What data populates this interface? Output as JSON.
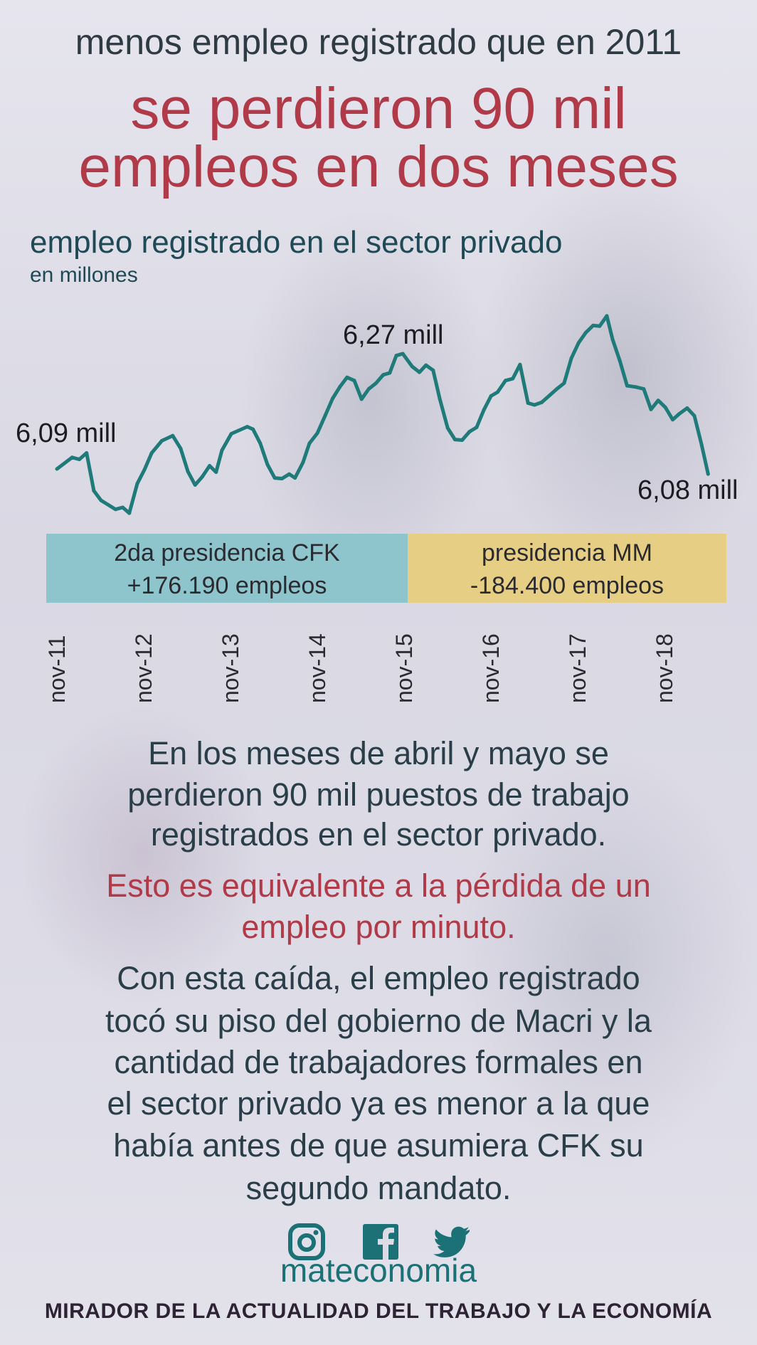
{
  "header": {
    "kicker": "menos empleo registrado que en 2011",
    "title_lines": [
      "se perdieron 90 mil",
      "empleos en dos meses"
    ]
  },
  "chart_data": {
    "type": "line",
    "title": "empleo registrado en el sector privado",
    "subtitle": "en millones",
    "xlabel": "",
    "ylabel": "",
    "x_unit": "months since nov-11",
    "ylim": [
      6.0,
      6.35
    ],
    "grid": false,
    "series": [
      {
        "name": "empleo registrado",
        "color": "#1f7a7a",
        "points": [
          [
            0,
            6.09
          ],
          [
            2.1,
            6.108
          ],
          [
            3.1,
            6.105
          ],
          [
            4.1,
            6.115
          ],
          [
            5.1,
            6.056
          ],
          [
            6.1,
            6.041
          ],
          [
            8.1,
            6.027
          ],
          [
            9.1,
            6.03
          ],
          [
            10,
            6.021
          ],
          [
            11.1,
            6.067
          ],
          [
            12.1,
            6.089
          ],
          [
            13.1,
            6.115
          ],
          [
            14.5,
            6.134
          ],
          [
            16,
            6.142
          ],
          [
            17.1,
            6.122
          ],
          [
            18.1,
            6.086
          ],
          [
            19.1,
            6.065
          ],
          [
            20.1,
            6.078
          ],
          [
            21.1,
            6.095
          ],
          [
            22,
            6.085
          ],
          [
            22.8,
            6.119
          ],
          [
            24.1,
            6.145
          ],
          [
            26.3,
            6.156
          ],
          [
            27.1,
            6.152
          ],
          [
            28.1,
            6.13
          ],
          [
            29.1,
            6.097
          ],
          [
            30.1,
            6.076
          ],
          [
            31.1,
            6.075
          ],
          [
            32.1,
            6.082
          ],
          [
            32.9,
            6.076
          ],
          [
            34,
            6.1
          ],
          [
            34.9,
            6.13
          ],
          [
            36,
            6.146
          ],
          [
            37.1,
            6.174
          ],
          [
            38.1,
            6.2
          ],
          [
            39.1,
            6.218
          ],
          [
            40.1,
            6.233
          ],
          [
            41.1,
            6.228
          ],
          [
            42.1,
            6.199
          ],
          [
            43.1,
            6.215
          ],
          [
            44.1,
            6.224
          ],
          [
            45.1,
            6.237
          ],
          [
            46,
            6.24
          ],
          [
            46.9,
            6.267
          ],
          [
            47.8,
            6.27
          ],
          [
            49.1,
            6.25
          ],
          [
            50.1,
            6.241
          ],
          [
            51,
            6.252
          ],
          [
            52,
            6.244
          ],
          [
            52.9,
            6.2
          ],
          [
            54,
            6.154
          ],
          [
            55,
            6.136
          ],
          [
            56,
            6.135
          ],
          [
            57,
            6.148
          ],
          [
            58,
            6.155
          ],
          [
            59,
            6.182
          ],
          [
            60,
            6.204
          ],
          [
            60.9,
            6.21
          ],
          [
            62,
            6.228
          ],
          [
            63,
            6.231
          ],
          [
            64,
            6.253
          ],
          [
            65.1,
            6.193
          ],
          [
            66,
            6.19
          ],
          [
            67,
            6.194
          ],
          [
            68.1,
            6.205
          ],
          [
            69.1,
            6.215
          ],
          [
            70.1,
            6.224
          ],
          [
            71.1,
            6.263
          ],
          [
            72.1,
            6.287
          ],
          [
            73.1,
            6.303
          ],
          [
            74.1,
            6.314
          ],
          [
            75,
            6.313
          ],
          [
            76,
            6.329
          ],
          [
            76.8,
            6.292
          ],
          [
            77.8,
            6.259
          ],
          [
            78.8,
            6.22
          ],
          [
            80,
            6.218
          ],
          [
            81.1,
            6.215
          ],
          [
            82.1,
            6.183
          ],
          [
            83.1,
            6.197
          ],
          [
            84.1,
            6.186
          ],
          [
            85.1,
            6.167
          ],
          [
            86,
            6.176
          ],
          [
            87.1,
            6.185
          ],
          [
            88.1,
            6.173
          ],
          [
            89.1,
            6.128
          ],
          [
            90,
            6.082
          ]
        ]
      }
    ],
    "annotations": [
      "6,09 mill",
      "6,27 mill",
      "6,08 mill"
    ],
    "x_ticks": [
      {
        "m": 0,
        "label": "nov-11"
      },
      {
        "m": 12,
        "label": "nov-12"
      },
      {
        "m": 24,
        "label": "nov-13"
      },
      {
        "m": 36,
        "label": "nov-14"
      },
      {
        "m": 48,
        "label": "nov-15"
      },
      {
        "m": 60,
        "label": "nov-16"
      },
      {
        "m": 72,
        "label": "nov-17"
      },
      {
        "m": 84,
        "label": "nov-18"
      }
    ],
    "periods": [
      {
        "line1": "2da presidencia CFK",
        "line2": "+176.190 empleos",
        "from": -1.5,
        "to": 48.5,
        "color": "#8ec4cc"
      },
      {
        "line1": "presidencia MM",
        "line2": "-184.400 empleos",
        "from": 48.5,
        "to": 92.5,
        "color": "#e6cf84"
      }
    ]
  },
  "body": {
    "p1": [
      "En los meses de abril y mayo se",
      "perdieron 90 mil puestos de trabajo",
      "registrados en el sector privado."
    ],
    "p2": [
      "Esto es equivalente a la pérdida de un",
      "empleo por minuto."
    ],
    "p3": [
      "Con esta caída, el empleo registrado",
      "tocó su piso del gobierno de Macri y la",
      "cantidad de trabajadores formales en",
      "el sector privado ya es menor a la que",
      "había antes de que asumiera CFK su",
      "segundo mandato."
    ]
  },
  "footer": {
    "icons": [
      "instagram-icon",
      "facebook-icon",
      "twitter-icon"
    ],
    "brand": "mateconomia",
    "tagline": "MIRADOR DE LA ACTUALIDAD DEL TRABAJO Y LA ECONOMÍA",
    "color": "#1b7175"
  }
}
